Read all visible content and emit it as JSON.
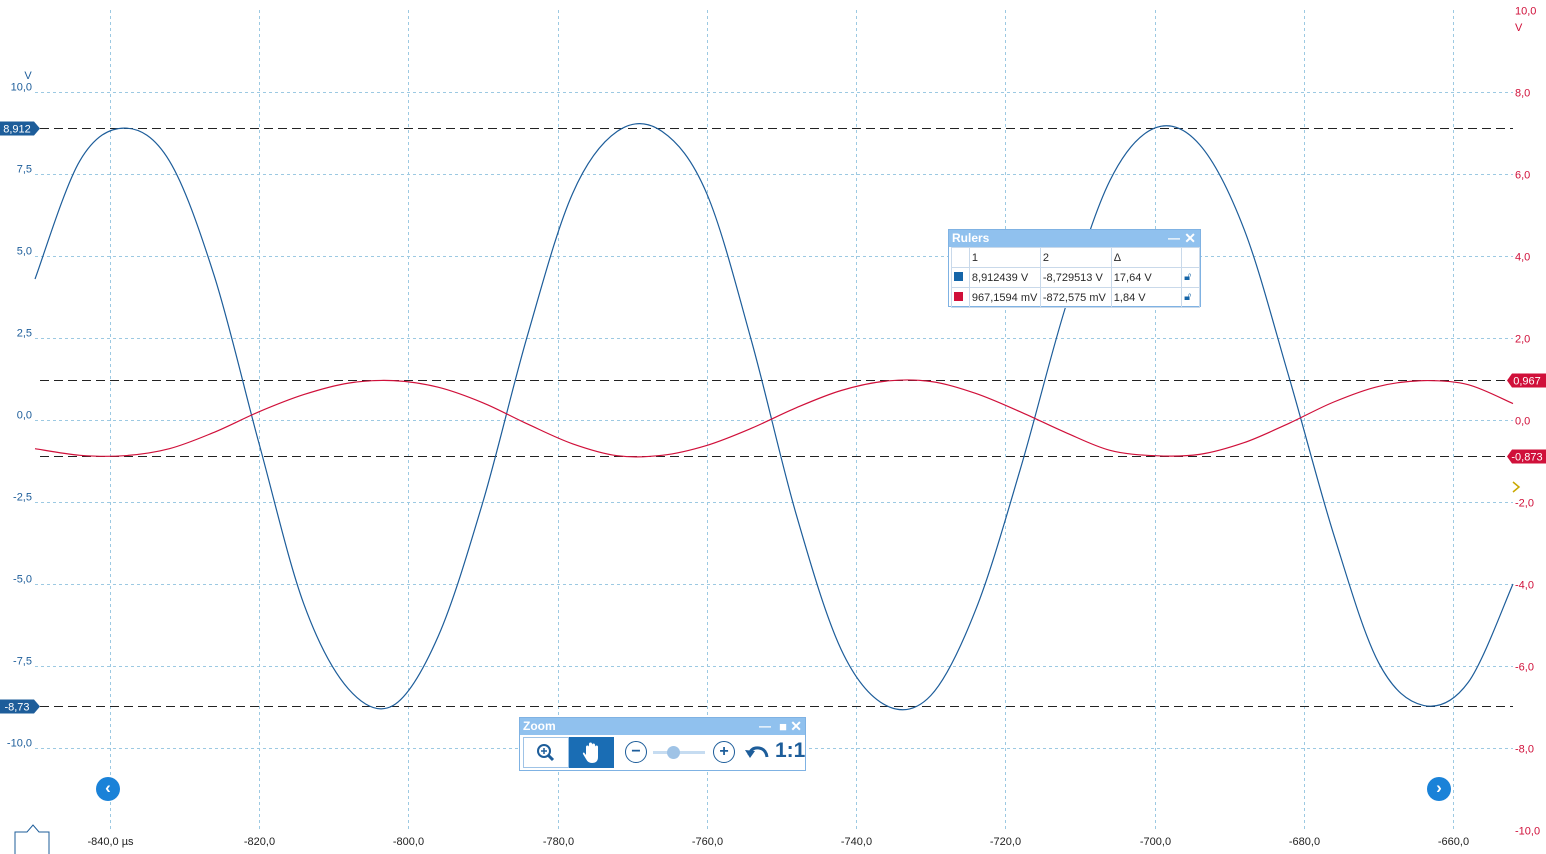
{
  "chart_data": {
    "type": "line",
    "x_unit": "µs",
    "xlim": [
      -850,
      -652
    ],
    "x_ticks": [
      {
        "value": -840,
        "label": "-840,0 µs"
      },
      {
        "value": -820,
        "label": "-820,0"
      },
      {
        "value": -800,
        "label": "-800,0"
      },
      {
        "value": -780,
        "label": "-780,0"
      },
      {
        "value": -760,
        "label": "-760,0"
      },
      {
        "value": -740,
        "label": "-740,0"
      },
      {
        "value": -720,
        "label": "-720,0"
      },
      {
        "value": -700,
        "label": "-700,0"
      },
      {
        "value": -680,
        "label": "-680,0"
      },
      {
        "value": -660,
        "label": "-660,0"
      }
    ],
    "left_axis": {
      "unit": "V",
      "ylim": [
        -12.5,
        12.5
      ],
      "color": "#1d5d9a",
      "ticks": [
        {
          "value": 10,
          "label": "10,0"
        },
        {
          "value": 7.5,
          "label": "7,5"
        },
        {
          "value": 5,
          "label": "5,0"
        },
        {
          "value": 2.5,
          "label": "2,5"
        },
        {
          "value": 0,
          "label": "0,0"
        },
        {
          "value": -2.5,
          "label": "-2,5"
        },
        {
          "value": -5,
          "label": "-5,0"
        },
        {
          "value": -7.5,
          "label": "-7,5"
        },
        {
          "value": -10,
          "label": "-10,0"
        }
      ]
    },
    "right_axis": {
      "unit": "V",
      "ylim": [
        -10,
        10
      ],
      "color": "#d0103a",
      "ticks": [
        {
          "value": 10,
          "label": "10,0"
        },
        {
          "value": 8,
          "label": "8,0"
        },
        {
          "value": 6,
          "label": "6,0"
        },
        {
          "value": 4,
          "label": "4,0"
        },
        {
          "value": 2,
          "label": "2,0"
        },
        {
          "value": 0,
          "label": "0,0"
        },
        {
          "value": -2,
          "label": "-2,0"
        },
        {
          "value": -4,
          "label": "-4,0"
        },
        {
          "value": -6,
          "label": "-6,0"
        },
        {
          "value": -8,
          "label": "-8,0"
        },
        {
          "value": -10,
          "label": "-10,0"
        }
      ]
    },
    "series": [
      {
        "axis": "left",
        "color": "#1d5d9a",
        "x": [
          -850,
          -844,
          -838,
          -832,
          -826,
          -820,
          -814,
          -808,
          -802,
          -796,
          -790,
          -784,
          -778,
          -772,
          -766,
          -760,
          -754,
          -748,
          -742,
          -736,
          -730,
          -724,
          -718,
          -712,
          -706,
          -700,
          -694,
          -688,
          -682,
          -676,
          -670,
          -664,
          -658,
          -652
        ],
        "y": [
          4.3,
          7.9,
          8.9,
          7.9,
          4.4,
          -0.7,
          -5.6,
          -8.2,
          -8.7,
          -6.6,
          -2.5,
          2.6,
          6.9,
          8.8,
          8.8,
          6.9,
          2.4,
          -2.9,
          -7.0,
          -8.7,
          -8.4,
          -5.8,
          -1.5,
          3.4,
          7.3,
          8.9,
          8.4,
          5.8,
          1.3,
          -3.5,
          -7.4,
          -8.7,
          -8.0,
          -5.0
        ]
      },
      {
        "axis": "right",
        "color": "#d0103a",
        "x": [
          -850,
          -844,
          -838,
          -832,
          -826,
          -820,
          -814,
          -808,
          -802,
          -796,
          -790,
          -784,
          -778,
          -772,
          -766,
          -760,
          -754,
          -748,
          -742,
          -736,
          -730,
          -724,
          -718,
          -712,
          -706,
          -700,
          -694,
          -688,
          -682,
          -676,
          -670,
          -664,
          -658,
          -652
        ],
        "y": [
          -0.7,
          -0.86,
          -0.87,
          -0.7,
          -0.3,
          0.2,
          0.62,
          0.9,
          0.96,
          0.8,
          0.42,
          -0.1,
          -0.58,
          -0.87,
          -0.86,
          -0.62,
          -0.2,
          0.3,
          0.72,
          0.95,
          0.94,
          0.65,
          0.2,
          -0.3,
          -0.74,
          -0.87,
          -0.84,
          -0.55,
          -0.08,
          0.44,
          0.82,
          0.96,
          0.86,
          0.4
        ]
      }
    ],
    "ruler_lines": [
      {
        "axis": "left",
        "value": 8.912,
        "label": "8,912",
        "color": "#1d5d9a"
      },
      {
        "axis": "left",
        "value": -8.73,
        "label": "-8,73",
        "color": "#1d5d9a"
      },
      {
        "axis": "right",
        "value": 0.967,
        "label": "0,967",
        "color": "#d0103a"
      },
      {
        "axis": "right",
        "value": -0.873,
        "label": "-0,873",
        "color": "#d0103a"
      }
    ],
    "grid": true
  },
  "rulers_panel": {
    "title": "Rulers",
    "headers": [
      "1",
      "2",
      "Δ"
    ],
    "rows": [
      {
        "color": "#1565a8",
        "v1": "8,912439 V",
        "v2": "-8,729513 V",
        "delta": "17,64 V"
      },
      {
        "color": "#d0103a",
        "v1": "967,1594 mV",
        "v2": "-872,575 mV",
        "delta": "1,84 V"
      }
    ]
  },
  "zoom_panel": {
    "title": "Zoom",
    "reset_label": "1:1",
    "slider_level": 0.4
  },
  "icons": [
    "zoom-magnifier-icon",
    "pan-hand-icon",
    "zoom-out-icon",
    "zoom-in-icon",
    "undo-icon",
    "nav-left-icon",
    "nav-right-icon",
    "right-axis-marker-icon",
    "close-icon",
    "minimize-icon",
    "maximize-icon",
    "lock-icon"
  ]
}
